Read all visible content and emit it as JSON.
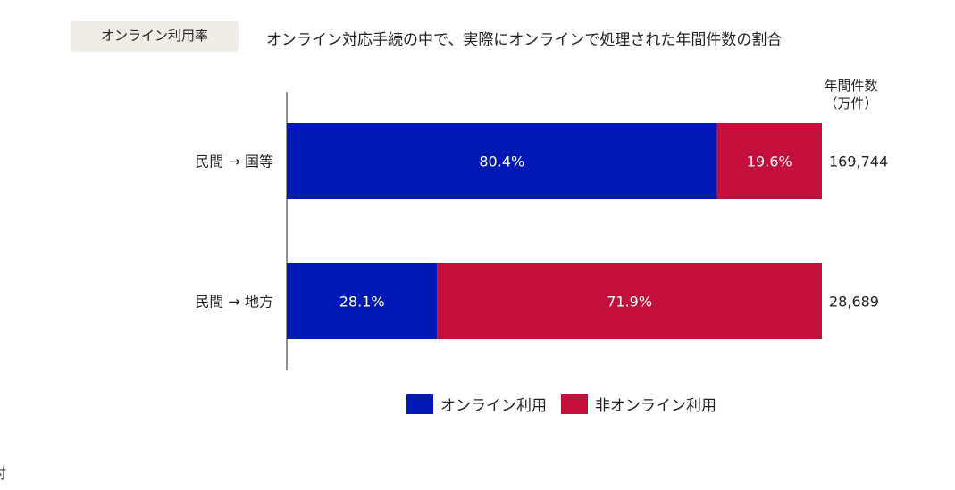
{
  "badge": "オンライン利用率",
  "chart_data": {
    "type": "bar",
    "orientation": "horizontal",
    "stacked": true,
    "title": "オンライン対応手続の中で、実際にオンラインで処理された年間件数の割合",
    "categories": [
      "民間 → 国等",
      "民間 → 地方"
    ],
    "series": [
      {
        "name": "オンライン利用",
        "values": [
          80.4,
          28.1
        ],
        "labels": [
          "80.4%",
          "28.1%"
        ],
        "color": "#0019b4"
      },
      {
        "name": "非オンライン利用",
        "values": [
          19.6,
          71.9
        ],
        "labels": [
          "19.6%",
          "71.9%"
        ],
        "color": "#c40f3c"
      }
    ],
    "xlim": [
      0,
      100
    ],
    "unit": "%",
    "grid": false,
    "legend_position": "bottom",
    "annual_count_header": [
      "年間件数",
      "（万件）"
    ],
    "annual_counts": [
      "169,744",
      "28,689"
    ]
  },
  "footer_fragment": "対"
}
